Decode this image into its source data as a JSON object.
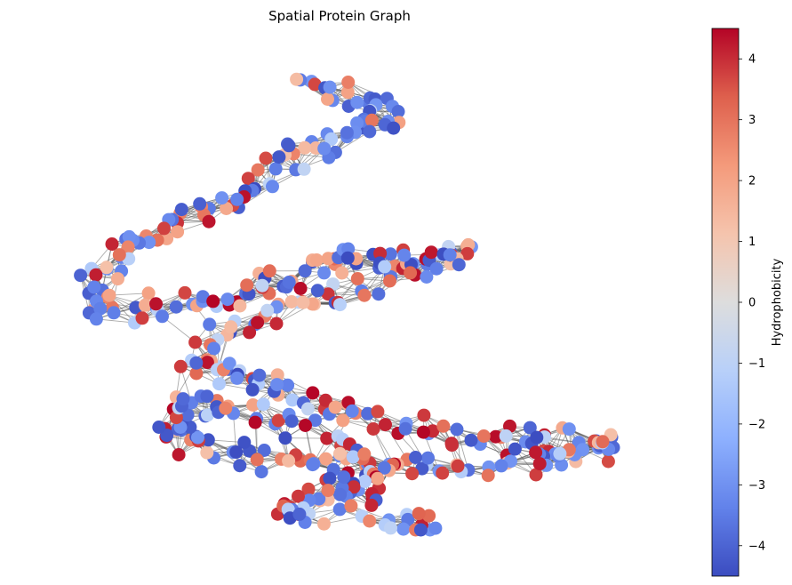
{
  "chart_data": {
    "type": "scatter",
    "title": "Spatial Protein Graph",
    "xlabel": "",
    "ylabel": "",
    "grid": false,
    "colorbar": {
      "label": "Hydrophobicity",
      "range": [
        -4.5,
        4.5
      ],
      "ticks": [
        4,
        3,
        2,
        1,
        0,
        -1,
        -2,
        -3,
        -4
      ],
      "tick_labels": [
        "4",
        "3",
        "2",
        "1",
        "0",
        "−1",
        "−2",
        "−3",
        "−4"
      ],
      "colormap": "coolwarm",
      "color_low": "#3b4cc0",
      "color_mid": "#dddddd",
      "color_high": "#b40426"
    },
    "edge_color": "#555555",
    "node_count_approx": 500,
    "axes_visible": false
  }
}
